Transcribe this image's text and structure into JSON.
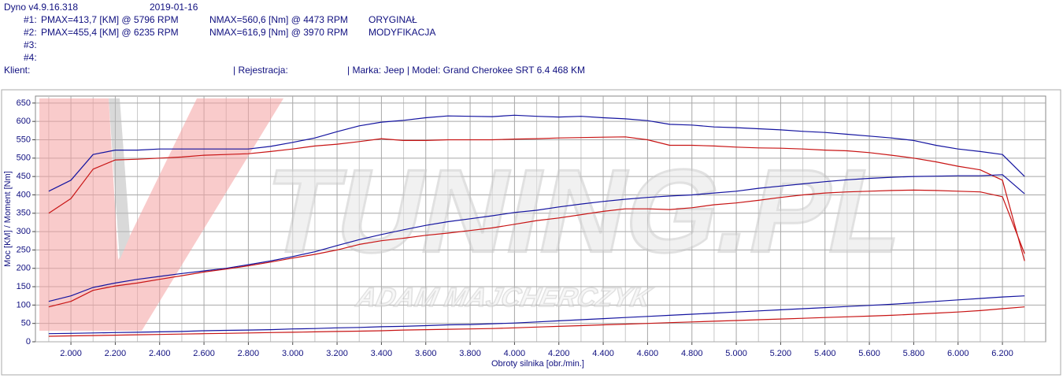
{
  "header": {
    "app": "Dyno v4.9.16.318",
    "date": "2019-01-16",
    "runs": [
      {
        "id": "#1:",
        "pmax": "PMAX=413,7 [KM] @ 5796 RPM",
        "nmax": "NMAX=560,6 [Nm] @ 4473 RPM",
        "label": "ORYGINAŁ"
      },
      {
        "id": "#2:",
        "pmax": "PMAX=455,4 [KM] @ 6235 RPM",
        "nmax": "NMAX=616,9 [Nm] @ 3970 RPM",
        "label": "MODYFIKACJA"
      },
      {
        "id": "#3:"
      },
      {
        "id": "#4:"
      }
    ],
    "client": "Klient:",
    "registration": "| Rejestracja:",
    "vehicle": "| Marka: Jeep | Model: Grand Cherokee SRT 6.4 468 KM"
  },
  "watermark": {
    "logo": "TUNING.PL",
    "tagline": "ADAM MAJCHERCZYK"
  },
  "chart_data": {
    "type": "line",
    "y_label": "Moc [KM] / Moment [Nm]",
    "x_label": "Obroty silnika [obr./min.]",
    "xlim": [
      1840,
      6395
    ],
    "ylim": [
      0,
      669
    ],
    "xticks": [
      {
        "value": 2000,
        "label": "2.000"
      },
      {
        "value": 2200,
        "label": "2.200"
      },
      {
        "value": 2400,
        "label": "2.400"
      },
      {
        "value": 2600,
        "label": "2.600"
      },
      {
        "value": 2800,
        "label": "2.800"
      },
      {
        "value": 3000,
        "label": "3.000"
      },
      {
        "value": 3200,
        "label": "3.200"
      },
      {
        "value": 3400,
        "label": "3.400"
      },
      {
        "value": 3600,
        "label": "3.600"
      },
      {
        "value": 3800,
        "label": "3.800"
      },
      {
        "value": 4000,
        "label": "4.000"
      },
      {
        "value": 4200,
        "label": "4.200"
      },
      {
        "value": 4400,
        "label": "4.400"
      },
      {
        "value": 4600,
        "label": "4.600"
      },
      {
        "value": 4800,
        "label": "4.800"
      },
      {
        "value": 5000,
        "label": "5.000"
      },
      {
        "value": 5200,
        "label": "5.200"
      },
      {
        "value": 5400,
        "label": "5.400"
      },
      {
        "value": 5600,
        "label": "5.600"
      },
      {
        "value": 5800,
        "label": "5.800"
      },
      {
        "value": 6000,
        "label": "6.000"
      },
      {
        "value": 6200,
        "label": "6.200"
      }
    ],
    "xminor": [
      1900,
      2100,
      2300,
      2500,
      2700,
      2900,
      3100,
      3300,
      3500,
      3700,
      3900,
      4100,
      4300,
      4500,
      4700,
      4900,
      5100,
      5300,
      5500,
      5700,
      5900,
      6100,
      6300
    ],
    "yticks": [
      0,
      50,
      100,
      150,
      200,
      250,
      300,
      350,
      400,
      450,
      500,
      550,
      600,
      650
    ],
    "grid": true,
    "x": [
      1900,
      2000,
      2100,
      2200,
      2300,
      2400,
      2500,
      2600,
      2700,
      2800,
      2900,
      3000,
      3100,
      3200,
      3300,
      3400,
      3500,
      3600,
      3700,
      3800,
      3900,
      4000,
      4100,
      4200,
      4300,
      4400,
      4500,
      4600,
      4700,
      4800,
      4900,
      5000,
      5100,
      5200,
      5300,
      5400,
      5500,
      5600,
      5700,
      5800,
      5900,
      6000,
      6100,
      6200,
      6300
    ],
    "series": [
      {
        "color": "#1414a0",
        "values": [
          410,
          440,
          510,
          522,
          522,
          525,
          525,
          525,
          525,
          525,
          532,
          543,
          555,
          572,
          588,
          598,
          603,
          610,
          615,
          614,
          613,
          617,
          614,
          612,
          614,
          610,
          607,
          602,
          592,
          590,
          585,
          583,
          580,
          577,
          573,
          570,
          565,
          560,
          555,
          548,
          535,
          525,
          518,
          510,
          450
        ]
      },
      {
        "color": "#c81414",
        "values": [
          350,
          390,
          470,
          495,
          497,
          500,
          503,
          508,
          510,
          512,
          518,
          525,
          533,
          538,
          545,
          553,
          548,
          548,
          550,
          550,
          550,
          552,
          553,
          555,
          556,
          557,
          558,
          550,
          535,
          535,
          533,
          530,
          528,
          527,
          525,
          522,
          520,
          515,
          508,
          500,
          490,
          478,
          468,
          440,
          220
        ]
      },
      {
        "color": "#1414a0",
        "values": [
          110,
          125,
          148,
          160,
          170,
          178,
          186,
          193,
          200,
          210,
          220,
          232,
          245,
          262,
          278,
          292,
          305,
          317,
          327,
          335,
          343,
          352,
          358,
          367,
          375,
          382,
          388,
          393,
          397,
          400,
          405,
          410,
          418,
          424,
          430,
          436,
          441,
          445,
          448,
          450,
          451,
          452,
          452,
          455,
          403
        ]
      },
      {
        "color": "#c81414",
        "values": [
          95,
          110,
          140,
          152,
          160,
          170,
          180,
          190,
          198,
          207,
          217,
          228,
          238,
          250,
          265,
          275,
          282,
          290,
          296,
          303,
          310,
          320,
          330,
          337,
          346,
          355,
          362,
          362,
          360,
          365,
          373,
          378,
          385,
          393,
          400,
          405,
          408,
          410,
          412,
          413,
          412,
          410,
          408,
          395,
          240
        ]
      },
      {
        "color": "#1414a0",
        "values": [
          22,
          23,
          24,
          25,
          26,
          27,
          28,
          30,
          31,
          32,
          33,
          35,
          36,
          38,
          39,
          41,
          42,
          44,
          46,
          47,
          49,
          51,
          54,
          57,
          60,
          63,
          66,
          69,
          72,
          75,
          78,
          81,
          84,
          87,
          90,
          93,
          96,
          99,
          102,
          106,
          110,
          114,
          118,
          122,
          125
        ]
      },
      {
        "color": "#c81414",
        "values": [
          15,
          16,
          17,
          18,
          19,
          20,
          21,
          22,
          23,
          24,
          25,
          26,
          27,
          28,
          29,
          30,
          32,
          33,
          34,
          35,
          36,
          38,
          40,
          42,
          44,
          46,
          48,
          50,
          52,
          54,
          56,
          58,
          60,
          62,
          64,
          66,
          68,
          70,
          72,
          75,
          78,
          81,
          85,
          90,
          95
        ]
      }
    ]
  }
}
